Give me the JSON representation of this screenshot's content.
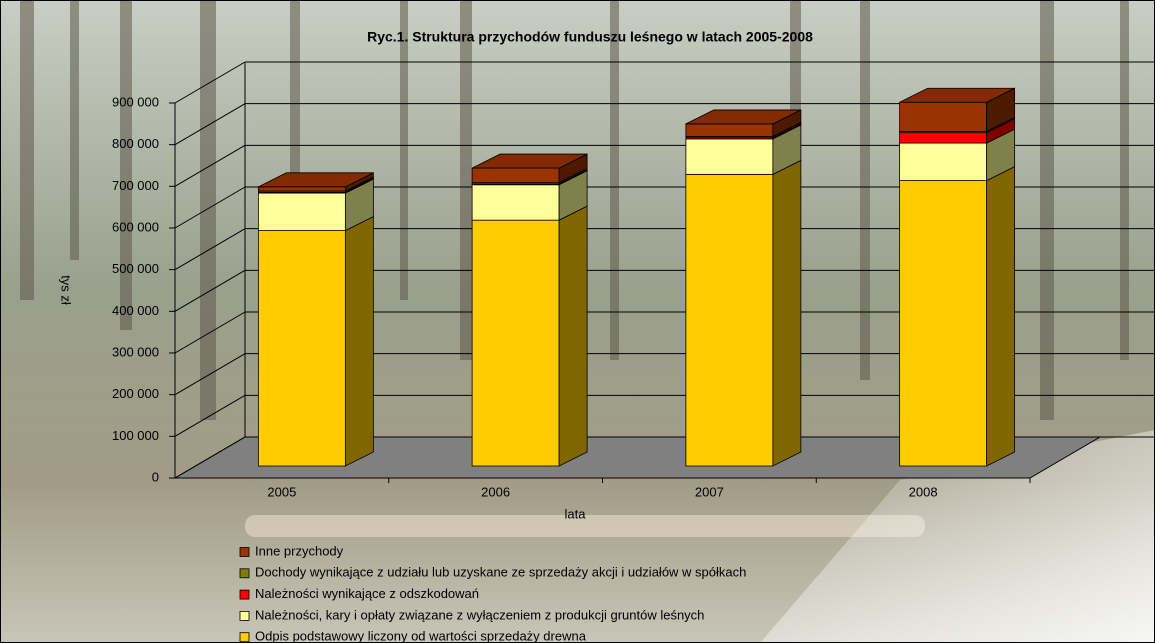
{
  "chart_data": {
    "type": "bar3d-stacked",
    "title": "Ryc.1. Struktura przychodów funduszu leśnego w latach 2005-2008",
    "x_label": "lata",
    "y_label": "tys zł",
    "categories": [
      "2005",
      "2006",
      "2007",
      "2008"
    ],
    "series": [
      {
        "name": "Odpis podstawowy liczony od wartości sprzedaży drewna",
        "color": "#ffcc00",
        "values": [
          565000,
          590000,
          700000,
          685000
        ]
      },
      {
        "name": "Należności, kary i opłaty związane z wyłączeniem z produkcji gruntów leśnych",
        "color": "#ffff99",
        "values": [
          90000,
          85000,
          85000,
          90000
        ]
      },
      {
        "name": "Należności wynikające z odszkodowań",
        "color": "#ff0000",
        "values": [
          2000,
          2000,
          3000,
          25000
        ]
      },
      {
        "name": "Dochody wynikające z udziału lub uzyskane ze sprzedaży akcji i udziałów w spółkach",
        "color": "#808000",
        "values": [
          3000,
          3000,
          3000,
          3000
        ]
      },
      {
        "name": "Inne przychody",
        "color": "#993300",
        "values": [
          10000,
          35000,
          30000,
          70000
        ]
      }
    ],
    "ylim": [
      0,
      900000
    ],
    "yticks": [
      {
        "value": 0,
        "label": "0"
      },
      {
        "value": 100000,
        "label": "100 000"
      },
      {
        "value": 200000,
        "label": "200 000"
      },
      {
        "value": 300000,
        "label": "300 000"
      },
      {
        "value": 400000,
        "label": "400 000"
      },
      {
        "value": 500000,
        "label": "500 000"
      },
      {
        "value": 600000,
        "label": "600 000"
      },
      {
        "value": 700000,
        "label": "700 000"
      },
      {
        "value": 800000,
        "label": "800 000"
      },
      {
        "value": 900000,
        "label": "900 000"
      }
    ],
    "grid": true,
    "legend": "bottom"
  }
}
